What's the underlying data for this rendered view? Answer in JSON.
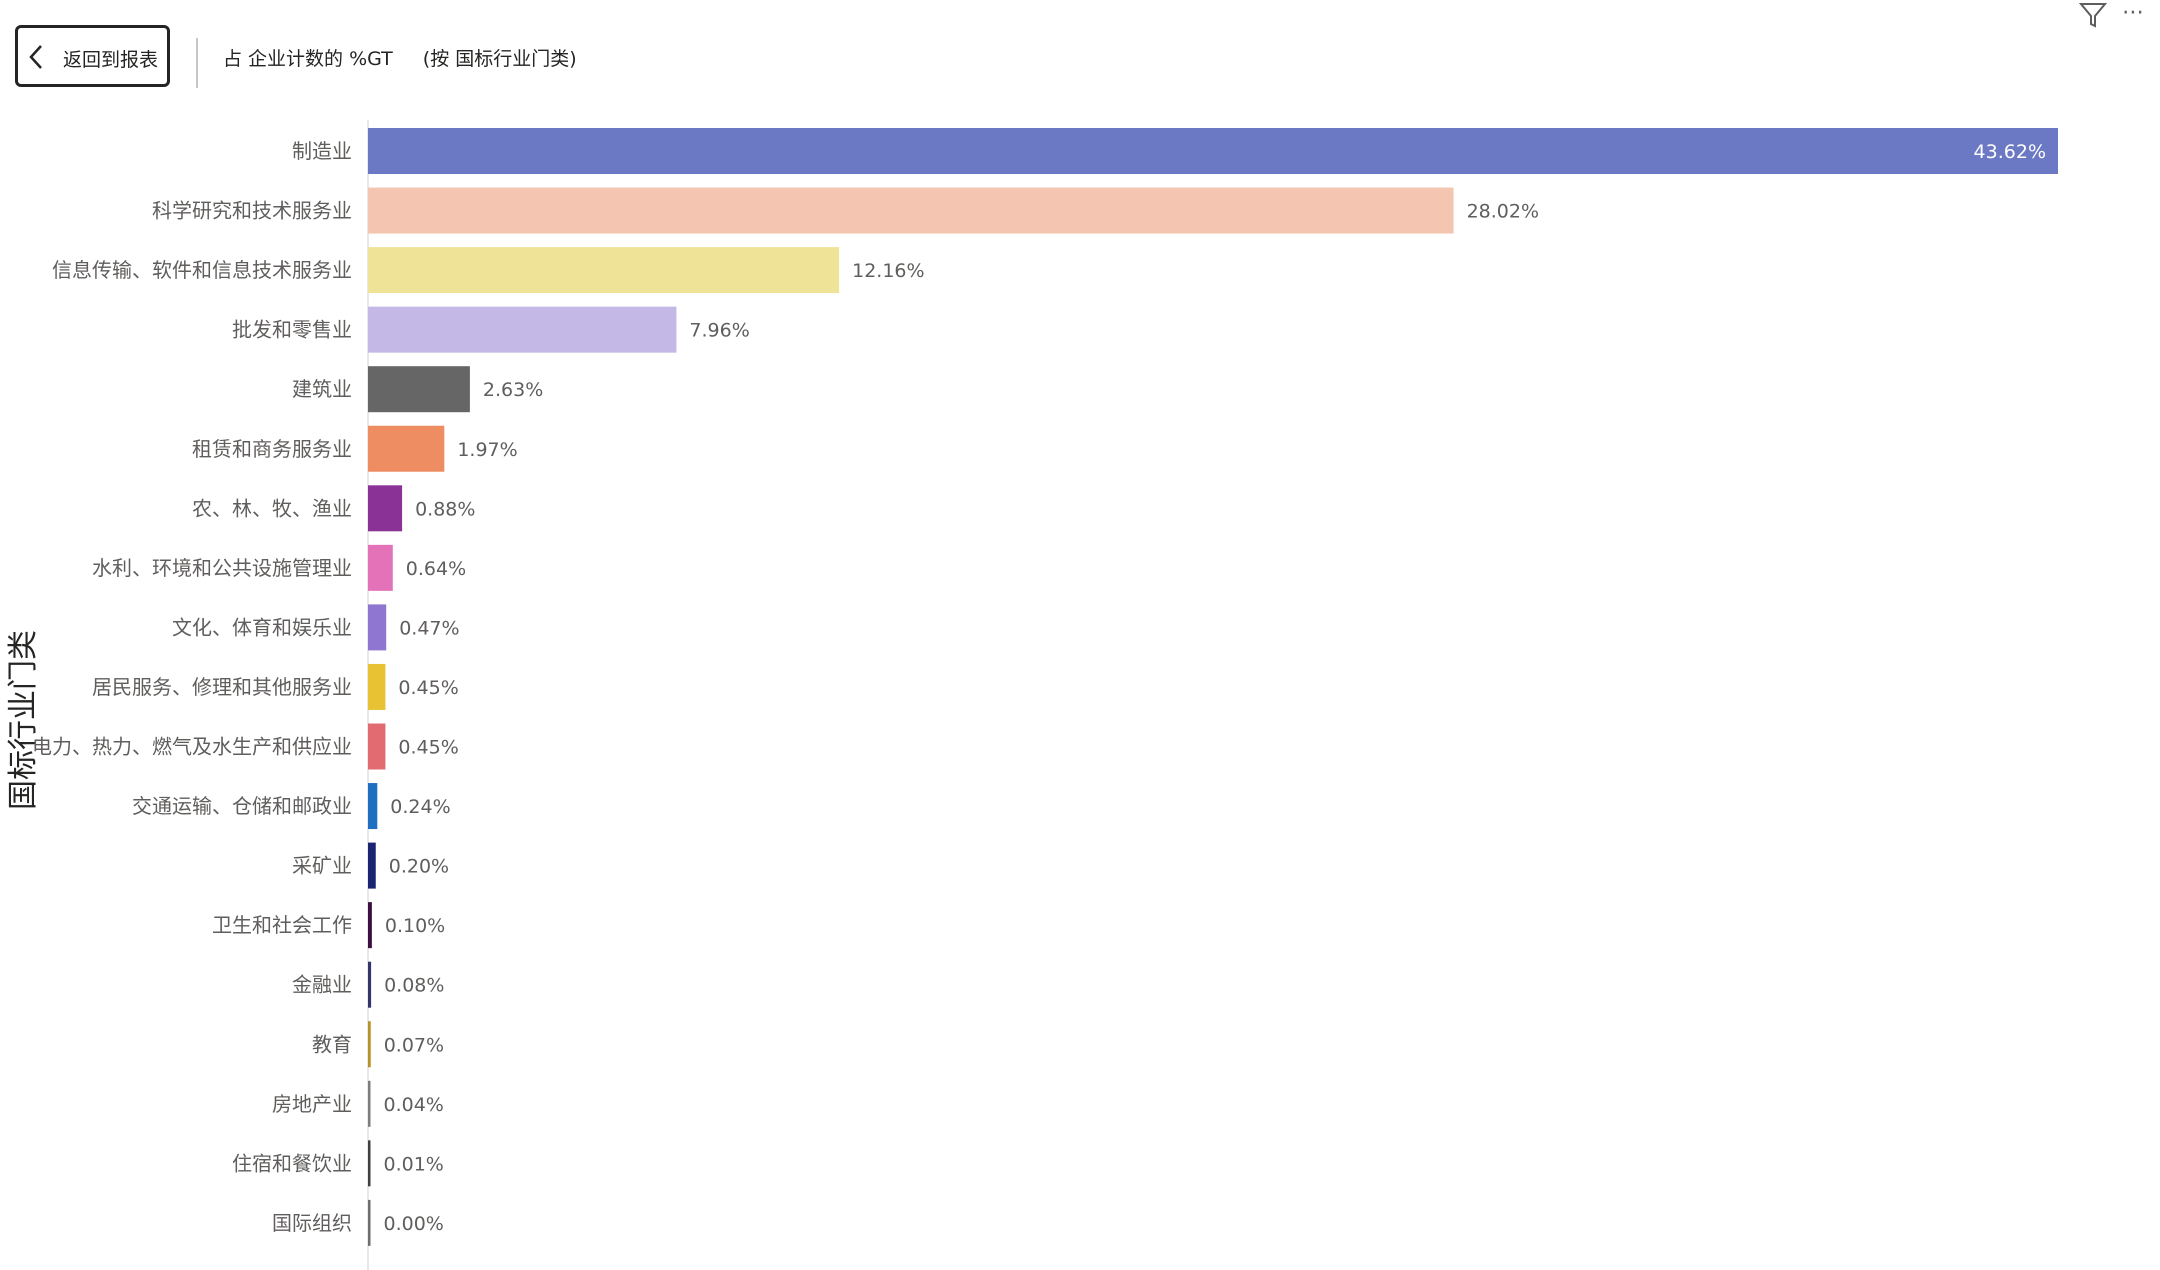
{
  "toolbar": {
    "back_label": "返回到报表",
    "title_measure": "占 企业计数的 %GT",
    "title_by": "(按 国标行业门类)"
  },
  "icons": {
    "back": "chevron-left-icon",
    "filter": "filter-icon",
    "more": "more-options-icon"
  },
  "chart_data": {
    "type": "bar",
    "orientation": "horizontal",
    "ylabel": "国标行业门类",
    "xlabel": "",
    "xlim": [
      0,
      43.62
    ],
    "categories": [
      "制造业",
      "科学研究和技术服务业",
      "信息传输、软件和信息技术服务业",
      "批发和零售业",
      "建筑业",
      "租赁和商务服务业",
      "农、林、牧、渔业",
      "水利、环境和公共设施管理业",
      "文化、体育和娱乐业",
      "居民服务、修理和其他服务业",
      "电力、热力、燃气及水生产和供应业",
      "交通运输、仓储和邮政业",
      "采矿业",
      "卫生和社会工作",
      "金融业",
      "教育",
      "房地产业",
      "住宿和餐饮业",
      "国际组织"
    ],
    "values": [
      43.62,
      28.02,
      12.16,
      7.96,
      2.63,
      1.97,
      0.88,
      0.64,
      0.47,
      0.45,
      0.45,
      0.24,
      0.2,
      0.1,
      0.08,
      0.07,
      0.04,
      0.01,
      0.0
    ],
    "data_labels": [
      "43.62%",
      "28.02%",
      "12.16%",
      "7.96%",
      "2.63%",
      "1.97%",
      "0.88%",
      "0.64%",
      "0.47%",
      "0.45%",
      "0.45%",
      "0.24%",
      "0.20%",
      "0.10%",
      "0.08%",
      "0.07%",
      "0.04%",
      "0.01%",
      "0.00%"
    ],
    "colors": [
      "#6b78c4",
      "#f4c6b1",
      "#efe398",
      "#c3b8e6",
      "#666666",
      "#ef8d62",
      "#8b3296",
      "#e472b9",
      "#8f76d0",
      "#e8c233",
      "#e26b72",
      "#1f6fc0",
      "#1b2470",
      "#3b1040",
      "#31356b",
      "#b89222",
      "#7d7d7d",
      "#404040",
      "#6e6e6e"
    ]
  }
}
